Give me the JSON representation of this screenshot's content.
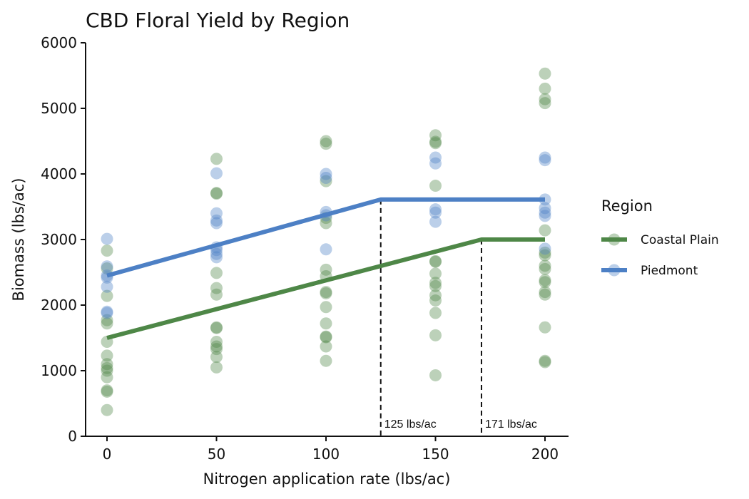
{
  "chart_data": {
    "type": "scatter",
    "title": "CBD Floral Yield by Region",
    "xlabel": "Nitrogen application rate (lbs/ac)",
    "ylabel": "Biomass (lbs/ac)",
    "xlim": [
      -10,
      210
    ],
    "ylim": [
      0,
      6000
    ],
    "x_ticks": [
      "0",
      "50",
      "100",
      "150",
      "200"
    ],
    "y_ticks": [
      "0",
      "1000",
      "2000",
      "3000",
      "4000",
      "5000",
      "6000"
    ],
    "grid": false,
    "legend": {
      "title": "Region",
      "position": "right"
    },
    "series": [
      {
        "name": "Coastal Plain",
        "color": "#4e8747",
        "points": [
          {
            "x": 0,
            "y": 2830
          },
          {
            "x": 0,
            "y": 2560
          },
          {
            "x": 0,
            "y": 2140
          },
          {
            "x": 0,
            "y": 1770
          },
          {
            "x": 0,
            "y": 1720
          },
          {
            "x": 0,
            "y": 1440
          },
          {
            "x": 0,
            "y": 1230
          },
          {
            "x": 0,
            "y": 1100
          },
          {
            "x": 0,
            "y": 1040
          },
          {
            "x": 0,
            "y": 1000
          },
          {
            "x": 0,
            "y": 900
          },
          {
            "x": 0,
            "y": 700
          },
          {
            "x": 0,
            "y": 680
          },
          {
            "x": 0,
            "y": 400
          },
          {
            "x": 50,
            "y": 4230
          },
          {
            "x": 50,
            "y": 3710
          },
          {
            "x": 50,
            "y": 3700
          },
          {
            "x": 50,
            "y": 2490
          },
          {
            "x": 50,
            "y": 2260
          },
          {
            "x": 50,
            "y": 2160
          },
          {
            "x": 50,
            "y": 1660
          },
          {
            "x": 50,
            "y": 1650
          },
          {
            "x": 50,
            "y": 1440
          },
          {
            "x": 50,
            "y": 1370
          },
          {
            "x": 50,
            "y": 1330
          },
          {
            "x": 50,
            "y": 1210
          },
          {
            "x": 50,
            "y": 1050
          },
          {
            "x": 100,
            "y": 4500
          },
          {
            "x": 100,
            "y": 4460
          },
          {
            "x": 100,
            "y": 3890
          },
          {
            "x": 100,
            "y": 3330
          },
          {
            "x": 100,
            "y": 3250
          },
          {
            "x": 100,
            "y": 2540
          },
          {
            "x": 100,
            "y": 2440
          },
          {
            "x": 100,
            "y": 2200
          },
          {
            "x": 100,
            "y": 2180
          },
          {
            "x": 100,
            "y": 1970
          },
          {
            "x": 100,
            "y": 1720
          },
          {
            "x": 100,
            "y": 1520
          },
          {
            "x": 100,
            "y": 1510
          },
          {
            "x": 100,
            "y": 1370
          },
          {
            "x": 100,
            "y": 1150
          },
          {
            "x": 150,
            "y": 4590
          },
          {
            "x": 150,
            "y": 4490
          },
          {
            "x": 150,
            "y": 4470
          },
          {
            "x": 150,
            "y": 3820
          },
          {
            "x": 150,
            "y": 2670
          },
          {
            "x": 150,
            "y": 2660
          },
          {
            "x": 150,
            "y": 2480
          },
          {
            "x": 150,
            "y": 2340
          },
          {
            "x": 150,
            "y": 2290
          },
          {
            "x": 150,
            "y": 2150
          },
          {
            "x": 150,
            "y": 2070
          },
          {
            "x": 150,
            "y": 1880
          },
          {
            "x": 150,
            "y": 1540
          },
          {
            "x": 150,
            "y": 930
          },
          {
            "x": 200,
            "y": 5530
          },
          {
            "x": 200,
            "y": 5300
          },
          {
            "x": 200,
            "y": 5140
          },
          {
            "x": 200,
            "y": 5080
          },
          {
            "x": 200,
            "y": 3140
          },
          {
            "x": 200,
            "y": 2800
          },
          {
            "x": 200,
            "y": 2760
          },
          {
            "x": 200,
            "y": 2600
          },
          {
            "x": 200,
            "y": 2550
          },
          {
            "x": 200,
            "y": 2380
          },
          {
            "x": 200,
            "y": 2350
          },
          {
            "x": 200,
            "y": 2200
          },
          {
            "x": 200,
            "y": 2160
          },
          {
            "x": 200,
            "y": 1660
          },
          {
            "x": 200,
            "y": 1150
          },
          {
            "x": 200,
            "y": 1130
          }
        ],
        "fit": [
          {
            "x": 0,
            "y": 1500
          },
          {
            "x": 171,
            "y": 3000
          },
          {
            "x": 200,
            "y": 3000
          }
        ],
        "breakpoint": {
          "x": 171,
          "label": "171 lbs/ac"
        }
      },
      {
        "name": "Piedmont",
        "color": "#4d80c5",
        "points": [
          {
            "x": 0,
            "y": 3010
          },
          {
            "x": 0,
            "y": 2590
          },
          {
            "x": 0,
            "y": 2450
          },
          {
            "x": 0,
            "y": 2420
          },
          {
            "x": 0,
            "y": 2280
          },
          {
            "x": 0,
            "y": 1900
          },
          {
            "x": 0,
            "y": 1880
          },
          {
            "x": 50,
            "y": 4010
          },
          {
            "x": 50,
            "y": 3400
          },
          {
            "x": 50,
            "y": 3290
          },
          {
            "x": 50,
            "y": 3250
          },
          {
            "x": 50,
            "y": 2880
          },
          {
            "x": 50,
            "y": 2840
          },
          {
            "x": 50,
            "y": 2780
          },
          {
            "x": 50,
            "y": 2730
          },
          {
            "x": 100,
            "y": 4000
          },
          {
            "x": 100,
            "y": 3940
          },
          {
            "x": 100,
            "y": 3420
          },
          {
            "x": 100,
            "y": 3370
          },
          {
            "x": 100,
            "y": 2850
          },
          {
            "x": 150,
            "y": 4250
          },
          {
            "x": 150,
            "y": 4160
          },
          {
            "x": 150,
            "y": 3460
          },
          {
            "x": 150,
            "y": 3410
          },
          {
            "x": 150,
            "y": 3270
          },
          {
            "x": 200,
            "y": 4250
          },
          {
            "x": 200,
            "y": 4210
          },
          {
            "x": 200,
            "y": 3610
          },
          {
            "x": 200,
            "y": 3480
          },
          {
            "x": 200,
            "y": 3410
          },
          {
            "x": 200,
            "y": 3360
          },
          {
            "x": 200,
            "y": 2860
          }
        ],
        "fit": [
          {
            "x": 0,
            "y": 2450
          },
          {
            "x": 125,
            "y": 3610
          },
          {
            "x": 200,
            "y": 3610
          }
        ],
        "breakpoint": {
          "x": 125,
          "label": "125 lbs/ac"
        }
      }
    ]
  }
}
